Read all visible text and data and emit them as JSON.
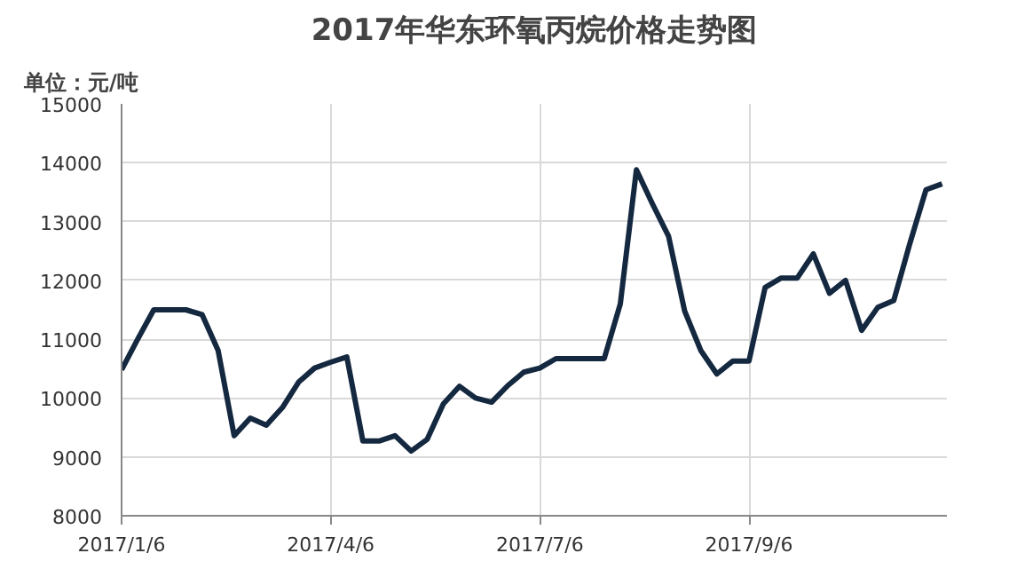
{
  "chart_data": {
    "type": "line",
    "title": "2017年华东环氧丙烷价格走势图",
    "ylabel": "单位：元/吨",
    "categories": [
      "2017/1/6",
      null,
      null,
      null,
      null,
      null,
      null,
      null,
      null,
      null,
      null,
      null,
      null,
      "2017/4/6",
      null,
      null,
      null,
      null,
      null,
      null,
      null,
      null,
      null,
      null,
      null,
      null,
      "2017/7/6",
      null,
      null,
      null,
      null,
      null,
      null,
      null,
      null,
      null,
      null,
      null,
      null,
      "2017/9/6",
      null,
      null,
      null,
      null,
      null,
      null,
      null,
      null,
      null,
      null,
      null,
      null
    ],
    "series": [
      {
        "color": "#142840",
        "values": [
          10480,
          11000,
          11500,
          11500,
          11500,
          11420,
          10810,
          9360,
          9660,
          9540,
          9840,
          10270,
          10510,
          10610,
          10700,
          9270,
          9270,
          9360,
          9100,
          9300,
          9900,
          10200,
          10000,
          9930,
          10210,
          10440,
          10510,
          10670,
          10670,
          10670,
          10670,
          11600,
          13880,
          13300,
          12750,
          11480,
          10810,
          10410,
          10630,
          10630,
          11880,
          12040,
          12040,
          12450,
          11780,
          12000,
          11150,
          11540,
          11660,
          12630,
          13540,
          13640
        ]
      }
    ],
    "ylim": [
      8000,
      15000
    ],
    "yticks": [
      8000,
      9000,
      10000,
      11000,
      12000,
      13000,
      14000,
      15000
    ],
    "grid": true,
    "marker": "none",
    "line_style": "solid"
  }
}
